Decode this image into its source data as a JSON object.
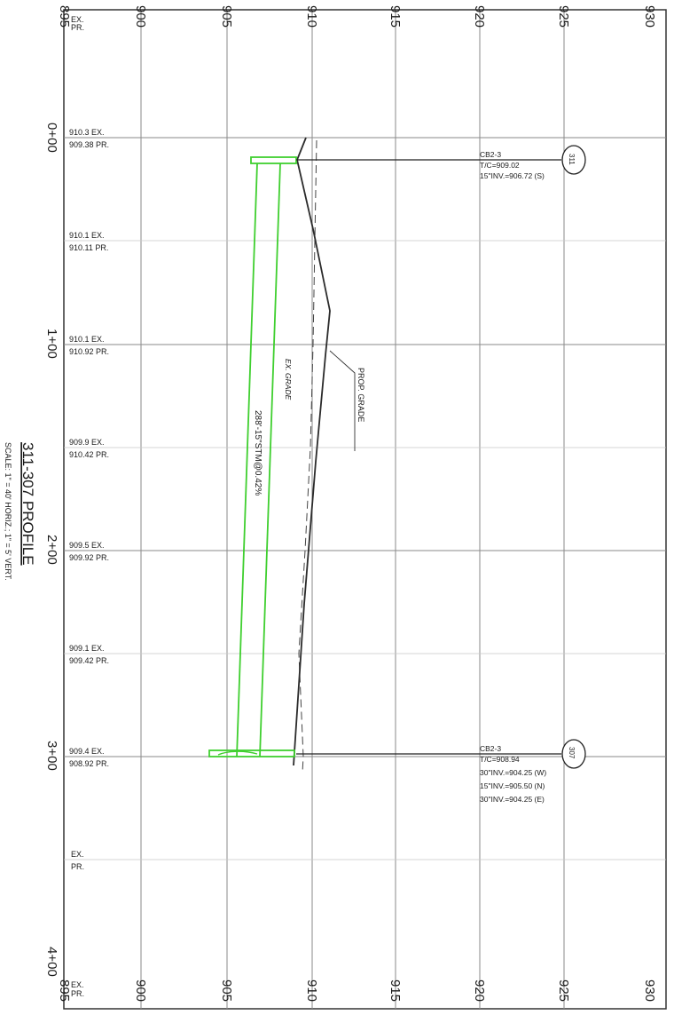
{
  "profile": {
    "title": "311-307 PROFILE",
    "scale": "SCALE: 1\" = 40' HORIZ.; 1\" = 5' VERT."
  },
  "axes": {
    "stations": [
      "0+00",
      "1+00",
      "2+00",
      "3+00",
      "4+00"
    ],
    "elevations": [
      "895",
      "900",
      "905",
      "910",
      "915",
      "920",
      "925",
      "930"
    ]
  },
  "grade_labels": [
    {
      "ex": "EX.",
      "pr": "PR."
    },
    {
      "ex": "910.3 EX.",
      "pr": "909.38 PR."
    },
    {
      "ex": "910.1 EX.",
      "pr": "910.11 PR."
    },
    {
      "ex": "910.1 EX.",
      "pr": "910.92 PR."
    },
    {
      "ex": "909.9 EX.",
      "pr": "910.42 PR."
    },
    {
      "ex": "909.5 EX.",
      "pr": "909.92 PR."
    },
    {
      "ex": "909.1 EX.",
      "pr": "909.42 PR."
    },
    {
      "ex": "909.4 EX.",
      "pr": "908.92 PR."
    },
    {
      "ex": "EX.",
      "pr": "PR."
    },
    {
      "ex": "EX.",
      "pr": "PR."
    }
  ],
  "annotations": {
    "prop_grade": "PROP. GRADE",
    "ex_grade": "EX. GRADE",
    "pipe": "288'-15\"STM@0.42%"
  },
  "structures": [
    {
      "id": "311",
      "lines": [
        "CB2-3",
        "T/C=909.02",
        "15\"INV.=906.72 (S)"
      ]
    },
    {
      "id": "307",
      "lines": [
        "CB2-3",
        "T/C=908.94",
        "30\"INV.=904.25 (W)",
        "15\"INV.=905.50 (N)",
        "30\"INV.=904.25 (E)"
      ]
    }
  ],
  "colors": {
    "pipe": "#3fcf2f",
    "grid": "#8a8a8a",
    "line": "#222222"
  }
}
